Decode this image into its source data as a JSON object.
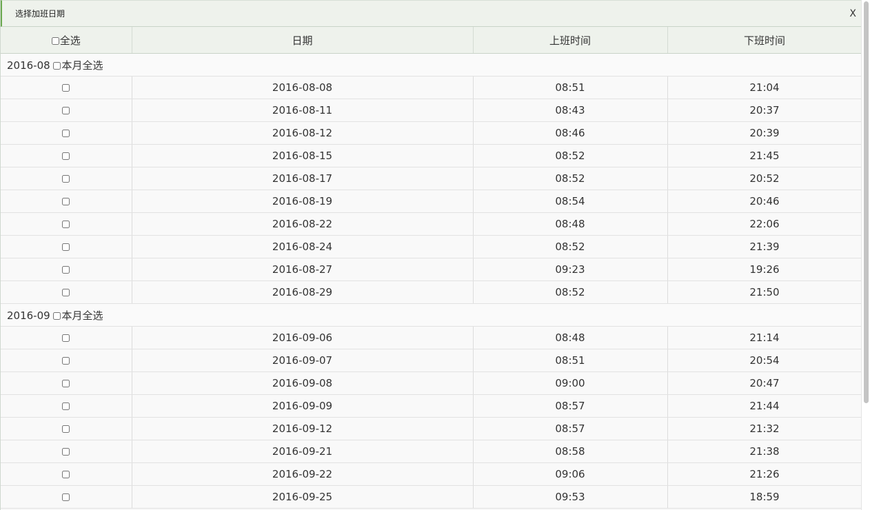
{
  "dialog": {
    "title": "选择加班日期",
    "close_label": "X"
  },
  "table": {
    "headers": {
      "select_all": "全选",
      "date": "日期",
      "start": "上班时间",
      "end": "下班时间"
    },
    "groups": [
      {
        "month": "2016-08",
        "select_month": "本月全选",
        "rows": [
          {
            "date": "2016-08-08",
            "start": "08:51",
            "end": "21:04"
          },
          {
            "date": "2016-08-11",
            "start": "08:43",
            "end": "20:37"
          },
          {
            "date": "2016-08-12",
            "start": "08:46",
            "end": "20:39"
          },
          {
            "date": "2016-08-15",
            "start": "08:52",
            "end": "21:45"
          },
          {
            "date": "2016-08-17",
            "start": "08:52",
            "end": "20:52"
          },
          {
            "date": "2016-08-19",
            "start": "08:54",
            "end": "20:46"
          },
          {
            "date": "2016-08-22",
            "start": "08:48",
            "end": "22:06"
          },
          {
            "date": "2016-08-24",
            "start": "08:52",
            "end": "21:39"
          },
          {
            "date": "2016-08-27",
            "start": "09:23",
            "end": "19:26"
          },
          {
            "date": "2016-08-29",
            "start": "08:52",
            "end": "21:50"
          }
        ]
      },
      {
        "month": "2016-09",
        "select_month": "本月全选",
        "rows": [
          {
            "date": "2016-09-06",
            "start": "08:48",
            "end": "21:14"
          },
          {
            "date": "2016-09-07",
            "start": "08:51",
            "end": "20:54"
          },
          {
            "date": "2016-09-08",
            "start": "09:00",
            "end": "20:47"
          },
          {
            "date": "2016-09-09",
            "start": "08:57",
            "end": "21:44"
          },
          {
            "date": "2016-09-12",
            "start": "08:57",
            "end": "21:32"
          },
          {
            "date": "2016-09-21",
            "start": "08:58",
            "end": "21:38"
          },
          {
            "date": "2016-09-22",
            "start": "09:06",
            "end": "21:26"
          },
          {
            "date": "2016-09-25",
            "start": "09:53",
            "end": "18:59"
          }
        ]
      }
    ]
  }
}
